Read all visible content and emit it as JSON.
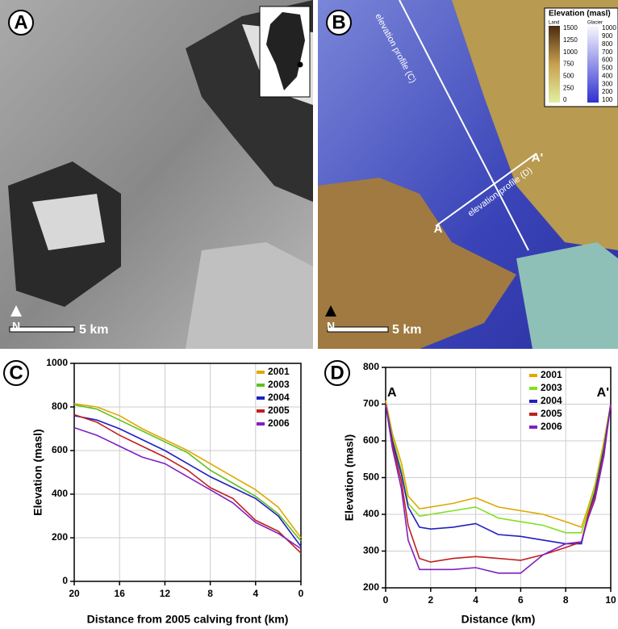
{
  "panels": {
    "A": {
      "label": "A",
      "scale": "5 km",
      "north": "N"
    },
    "B": {
      "label": "B",
      "scale": "5 km",
      "north": "N",
      "profile_c": "elevation profile (C)",
      "profile_d": "elevation profile (D)",
      "end_a": "A",
      "end_b": "A'",
      "legend": {
        "title": "Elevation (masl)",
        "land": "Land",
        "glacier": "Glacier",
        "land_ticks": [
          "1500",
          "1250",
          "1000",
          "750",
          "500",
          "250",
          "0"
        ],
        "glacier_ticks": [
          "1000",
          "900",
          "800",
          "700",
          "600",
          "500",
          "400",
          "300",
          "200",
          "100"
        ]
      }
    }
  },
  "chart_data": [
    {
      "type": "line",
      "panel_label": "C",
      "x_label": "Distance from 2005 calving front (km)",
      "y_label": "Elevation (masl)",
      "x": [
        20,
        18,
        16,
        14,
        12,
        10,
        8,
        6,
        4,
        2,
        0
      ],
      "xlim": [
        20,
        0
      ],
      "xticks": [
        20,
        16,
        12,
        8,
        4,
        0
      ],
      "ylim": [
        0,
        1000
      ],
      "yticks": [
        0,
        200,
        400,
        600,
        800,
        1000
      ],
      "grid": true,
      "series": [
        {
          "name": "2001",
          "color": "#e0a800",
          "values": [
            815,
            800,
            760,
            700,
            650,
            600,
            540,
            480,
            420,
            340,
            200
          ]
        },
        {
          "name": "2003",
          "color": "#60c020",
          "values": [
            810,
            790,
            740,
            690,
            640,
            590,
            510,
            450,
            390,
            310,
            185
          ]
        },
        {
          "name": "2004",
          "color": "#2020c0",
          "values": [
            760,
            740,
            700,
            650,
            600,
            540,
            480,
            430,
            380,
            300,
            160
          ]
        },
        {
          "name": "2005",
          "color": "#c02020",
          "values": [
            765,
            730,
            670,
            620,
            570,
            510,
            430,
            380,
            280,
            230,
            130
          ]
        },
        {
          "name": "2006",
          "color": "#8020c0",
          "values": [
            705,
            670,
            620,
            570,
            540,
            480,
            420,
            360,
            270,
            220,
            150
          ]
        }
      ]
    },
    {
      "type": "line",
      "panel_label": "D",
      "x_label": "Distance (km)",
      "y_label": "Elevation (masl)",
      "annotations": [
        "A",
        "A'"
      ],
      "x": [
        0,
        0.3,
        0.7,
        1,
        1.5,
        2,
        3,
        4,
        5,
        6,
        7,
        8,
        8.7,
        9,
        9.3,
        9.7,
        10
      ],
      "xlim": [
        0,
        10
      ],
      "xticks": [
        0,
        2,
        4,
        6,
        8,
        10
      ],
      "ylim": [
        200,
        800
      ],
      "yticks": [
        200,
        300,
        400,
        500,
        600,
        700,
        800
      ],
      "grid": true,
      "series": [
        {
          "name": "2001",
          "color": "#e0a800",
          "values": [
            710,
            620,
            540,
            450,
            415,
            420,
            430,
            445,
            420,
            410,
            400,
            380,
            365,
            420,
            480,
            600,
            700
          ]
        },
        {
          "name": "2003",
          "color": "#80e020",
          "values": [
            700,
            610,
            520,
            430,
            395,
            400,
            410,
            420,
            390,
            380,
            370,
            350,
            350,
            410,
            470,
            590,
            700
          ]
        },
        {
          "name": "2004",
          "color": "#2020c0",
          "values": [
            700,
            600,
            510,
            420,
            365,
            360,
            365,
            375,
            345,
            340,
            330,
            320,
            320,
            400,
            460,
            580,
            700
          ]
        },
        {
          "name": "2005",
          "color": "#c02020",
          "values": [
            700,
            590,
            490,
            370,
            280,
            270,
            280,
            285,
            280,
            275,
            290,
            310,
            325,
            400,
            450,
            570,
            700
          ]
        },
        {
          "name": "2006",
          "color": "#8020c0",
          "values": [
            700,
            580,
            470,
            330,
            250,
            250,
            250,
            255,
            240,
            240,
            290,
            320,
            325,
            390,
            440,
            560,
            700
          ]
        }
      ]
    }
  ]
}
